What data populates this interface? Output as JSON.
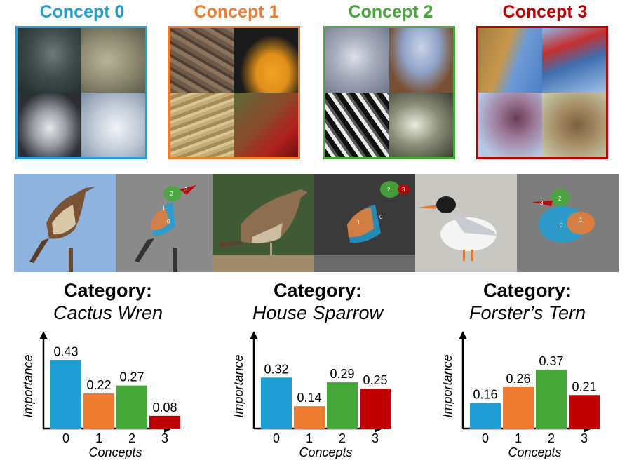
{
  "concepts": [
    {
      "label": "Concept 0",
      "color": "#1f9fd6"
    },
    {
      "label": "Concept 1",
      "color": "#ee7b30"
    },
    {
      "label": "Concept 2",
      "color": "#47a83a"
    },
    {
      "label": "Concept 3",
      "color": "#c00000"
    }
  ],
  "examples": [
    {
      "category_label": "Category:",
      "category_name": "Cactus Wren"
    },
    {
      "category_label": "Category:",
      "category_name": "House Sparrow"
    },
    {
      "category_label": "Category:",
      "category_name": "Forster’s Tern"
    }
  ],
  "part_labels": [
    "0",
    "1",
    "2",
    "3"
  ],
  "chart_data": [
    {
      "type": "bar",
      "title": "Cactus Wren",
      "categories": [
        "0",
        "1",
        "2",
        "3"
      ],
      "values": [
        0.43,
        0.22,
        0.27,
        0.08
      ],
      "value_labels": [
        "0.43",
        "0.22",
        "0.27",
        "0.08"
      ],
      "xlabel": "Concepts",
      "ylabel": "Importance",
      "colors": [
        "#1f9fd6",
        "#ee7b30",
        "#47a83a",
        "#c00000"
      ],
      "ylim": [
        0,
        0.55
      ]
    },
    {
      "type": "bar",
      "title": "House Sparrow",
      "categories": [
        "0",
        "1",
        "2",
        "3"
      ],
      "values": [
        0.32,
        0.14,
        0.29,
        0.25
      ],
      "value_labels": [
        "0.32",
        "0.14",
        "0.29",
        "0.25"
      ],
      "xlabel": "Concepts",
      "ylabel": "Importance",
      "colors": [
        "#1f9fd6",
        "#ee7b30",
        "#47a83a",
        "#c00000"
      ],
      "ylim": [
        0,
        0.55
      ]
    },
    {
      "type": "bar",
      "title": "Forster’s Tern",
      "categories": [
        "0",
        "1",
        "2",
        "3"
      ],
      "values": [
        0.16,
        0.26,
        0.37,
        0.21
      ],
      "value_labels": [
        "0.16",
        "0.26",
        "0.37",
        "0.21"
      ],
      "xlabel": "Concepts",
      "ylabel": "Importance",
      "colors": [
        "#1f9fd6",
        "#ee7b30",
        "#47a83a",
        "#c00000"
      ],
      "ylim": [
        0,
        0.55
      ]
    }
  ]
}
